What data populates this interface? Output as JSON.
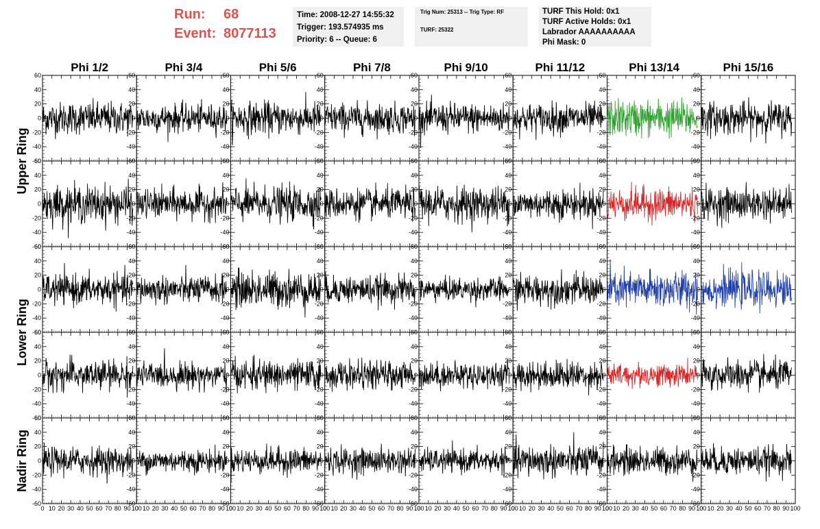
{
  "header": {
    "run_label": "Run:",
    "run_value": "68",
    "event_label": "Event:",
    "event_value": "8077113",
    "time": "Time: 2008-12-27 14:55:32",
    "trigger": "Trigger: 193.574935 ms",
    "priority": "Priority: 6 -- Queue: 6",
    "trig_num": "Trig Num: 25313 -- Trig Type: RF",
    "turf": "TURF: 25322",
    "turf_this_hold": "TURF This Hold: 0x1",
    "turf_active_holds": "TURF Active Holds: 0x1",
    "labrador": "Labrador AAAAAAAAAA",
    "phi_mask": "Phi Mask: 0"
  },
  "colors": {
    "accent_red": "#d9534f",
    "trace_default": "#000000",
    "trace_green": "#2ca02c",
    "trace_red": "#d62728",
    "trace_blue": "#1f3fa8"
  },
  "chart_data": {
    "type": "line",
    "columns": [
      "Phi 1/2",
      "Phi 3/4",
      "Phi 5/6",
      "Phi 7/8",
      "Phi 9/10",
      "Phi 11/12",
      "Phi 13/14",
      "Phi 15/16"
    ],
    "ring_labels": [
      {
        "text": "Upper Ring",
        "rows": [
          0,
          1
        ]
      },
      {
        "text": "Lower Ring",
        "rows": [
          2,
          3
        ]
      },
      {
        "text": "Nadir Ring",
        "rows": [
          4
        ]
      }
    ],
    "xlim": [
      0,
      100
    ],
    "ylim": [
      -60,
      60
    ],
    "x_ticks": [
      "0",
      "10",
      "20",
      "30",
      "40",
      "50",
      "60",
      "70",
      "80",
      "90",
      "100"
    ],
    "y_ticks": [
      "60",
      "40",
      "20",
      "0",
      "-20",
      "-40",
      "-60"
    ],
    "trace_samples": 260,
    "grid": false,
    "rows": [
      {
        "colors": [
          "black",
          "black",
          "black",
          "black",
          "black",
          "black",
          "green",
          "black"
        ],
        "amplitude": [
          14,
          12,
          14,
          13,
          13,
          13,
          16,
          14
        ]
      },
      {
        "colors": [
          "black",
          "black",
          "black",
          "black",
          "black",
          "black",
          "red",
          "black"
        ],
        "amplitude": [
          16,
          13,
          15,
          13,
          15,
          13,
          14,
          14
        ]
      },
      {
        "colors": [
          "black",
          "black",
          "black",
          "black",
          "black",
          "black",
          "blue",
          "blue"
        ],
        "amplitude": [
          13,
          12,
          16,
          12,
          10,
          13,
          16,
          15
        ]
      },
      {
        "colors": [
          "black",
          "black",
          "black",
          "black",
          "black",
          "black",
          "red",
          "black"
        ],
        "amplitude": [
          13,
          11,
          13,
          12,
          11,
          12,
          10,
          13
        ]
      },
      {
        "colors": [
          "black",
          "black",
          "black",
          "black",
          "black",
          "black",
          "black",
          "black"
        ],
        "amplitude": [
          12,
          10,
          11,
          11,
          10,
          14,
          12,
          12
        ]
      }
    ]
  }
}
